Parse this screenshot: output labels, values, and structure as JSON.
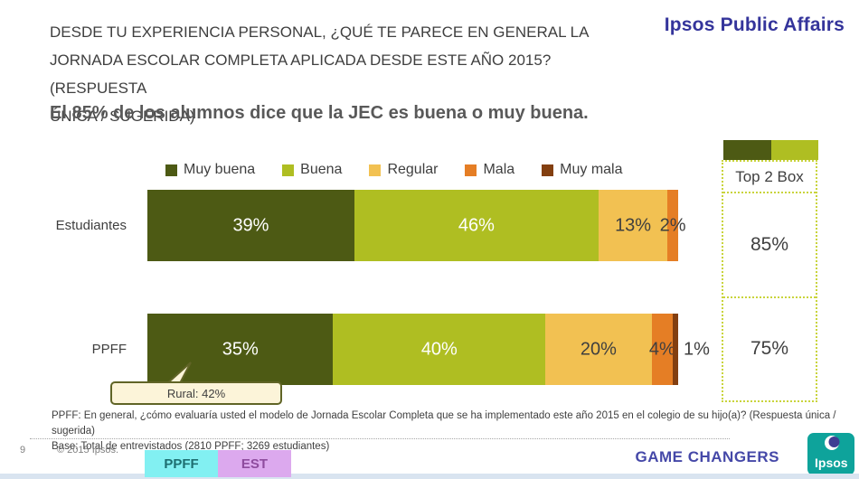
{
  "header": {
    "title_lines": [
      "DESDE TU EXPERIENCIA PERSONAL, ¿QUÉ TE PARECE EN GENERAL LA",
      "JORNADA ESCOLAR COMPLETA APLICADA DESDE ESTE AÑO 2015? (RESPUESTA",
      "ÚNICA / SUGERIDA)"
    ],
    "brand": "Ipsos Public Affairs",
    "subtitle": "El 85% de los alumnos dice que la JEC es buena o muy buena."
  },
  "chart_data": {
    "type": "bar",
    "orientation": "horizontal-stacked",
    "categories": [
      "Estudiantes",
      "PPFF"
    ],
    "series": [
      {
        "name": "Muy buena",
        "color": "#4D5A14",
        "label_style": "inside-light",
        "values": [
          39,
          35
        ]
      },
      {
        "name": "Buena",
        "color": "#AFBE22",
        "label_style": "inside-light",
        "values": [
          46,
          40
        ]
      },
      {
        "name": "Regular",
        "color": "#F2C152",
        "label_style": "inside-dark",
        "values": [
          13,
          20
        ]
      },
      {
        "name": "Mala",
        "color": "#E57E25",
        "label_style": "inside-dark",
        "values": [
          2,
          4
        ]
      },
      {
        "name": "Muy mala",
        "color": "#833F10",
        "label_style": "outside-dark",
        "values": [
          0,
          1
        ]
      }
    ],
    "value_suffix": "%",
    "xlim": [
      0,
      100
    ],
    "grid": false,
    "legend_position": "top",
    "callout": {
      "text": "Rural: 42%",
      "target": "PPFF - Muy buena"
    },
    "top2box": {
      "title": "Top 2 Box",
      "values": [
        "85%",
        "75%"
      ],
      "swatch_colors": [
        "#4D5A14",
        "#AFBE22"
      ]
    }
  },
  "footer": {
    "note_lines": [
      "PPFF: En general, ¿cómo evaluaría usted el modelo de Jornada Escolar Completa que se ha implementado este año 2015 en el colegio de su hijo(a)? (Respuesta única / sugerida)",
      "Base: Total de entrevistados (2810 PPFF; 3269 estudiantes)"
    ],
    "page_number": "9",
    "copyright": "© 2015 Ipsos.",
    "tabs": [
      {
        "label": "PPFF",
        "bg": "#82F0F2",
        "fg": "#1E6E70"
      },
      {
        "label": "EST",
        "bg": "#DCA9EE",
        "fg": "#8E4C9E"
      }
    ],
    "slogan": "GAME CHANGERS",
    "logo_text": "Ipsos",
    "logo_color": "#0EA39B"
  }
}
